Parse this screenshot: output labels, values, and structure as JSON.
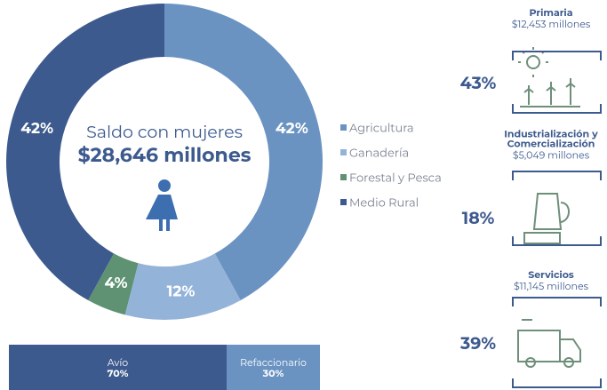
{
  "chart_data": {
    "type": "pie",
    "title": "Saldo con mujeres",
    "subtitle": "$28,646 millones",
    "categories": [
      "Agricultura",
      "Ganadería",
      "Forestal y Pesca",
      "Medio Rural"
    ],
    "values": [
      42,
      12,
      4,
      42
    ],
    "value_labels": [
      "42%",
      "12%",
      "4%",
      "42%"
    ],
    "colors": [
      "#6a93c2",
      "#94b3d9",
      "#5e9272",
      "#3d5a8e"
    ],
    "legend": "right"
  },
  "split": {
    "categories": [
      "Avío",
      "Refaccionario"
    ],
    "values": [
      70,
      30
    ],
    "value_labels": [
      "70%",
      "30%"
    ],
    "colors": [
      "#3d5a8e",
      "#6a93c2"
    ]
  },
  "sectors": [
    {
      "title_lines": [
        "Primaria"
      ],
      "amount": "$12,453 millones",
      "share": "43%"
    },
    {
      "title_lines": [
        "Industrialización y",
        "Comercialización"
      ],
      "amount": "$5,049 millones",
      "share": "18%"
    },
    {
      "title_lines": [
        "Servicios"
      ],
      "amount": "$11,145 millones",
      "share": "39%"
    }
  ]
}
